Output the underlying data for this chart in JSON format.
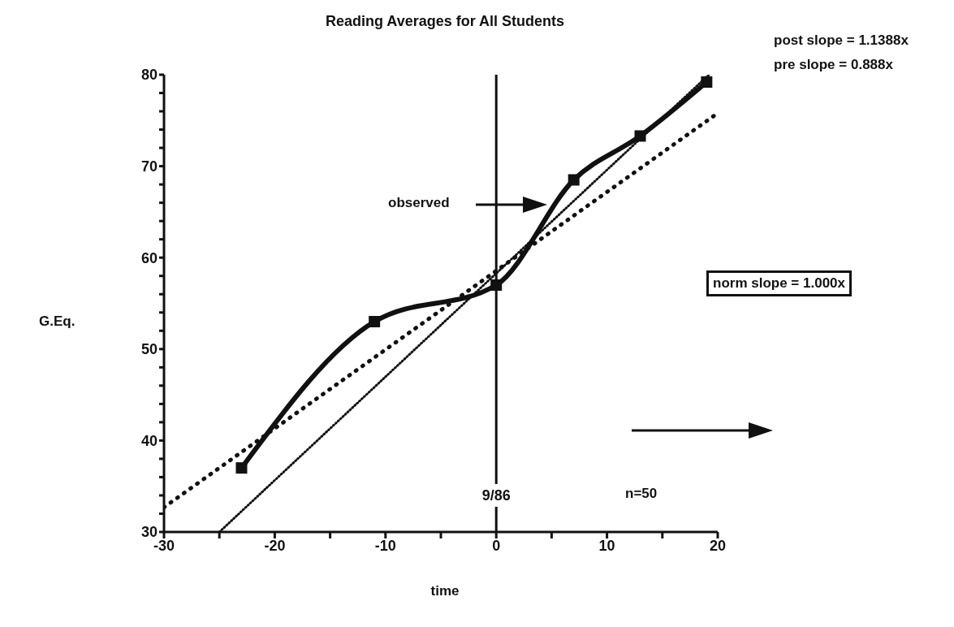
{
  "chart_data": {
    "type": "line",
    "title": "Reading Averages for All Students",
    "xlabel": "time",
    "ylabel": "G.Eq.",
    "xlim": [
      -30,
      20
    ],
    "xticks": [
      -30,
      {
        "value": -25,
        "label": null
      },
      -20,
      {
        "value": -15,
        "label": null
      },
      -10,
      {
        "value": -5,
        "label": null
      },
      0,
      {
        "value": 5,
        "label": null
      },
      10,
      {
        "value": 15,
        "label": null
      },
      20
    ],
    "ylim": [
      30,
      80
    ],
    "yticks": [
      30,
      {
        "value": 32,
        "label": null
      },
      {
        "value": 34,
        "label": null
      },
      {
        "value": 36,
        "label": null
      },
      {
        "value": 38,
        "label": null
      },
      40,
      {
        "value": 42,
        "label": null
      },
      {
        "value": 44,
        "label": null
      },
      {
        "value": 46,
        "label": null
      },
      {
        "value": 48,
        "label": null
      },
      50,
      {
        "value": 52,
        "label": null
      },
      {
        "value": 54,
        "label": null
      },
      {
        "value": 56,
        "label": null
      },
      {
        "value": 58,
        "label": null
      },
      60,
      {
        "value": 62,
        "label": null
      },
      {
        "value": 64,
        "label": null
      },
      {
        "value": 66,
        "label": null
      },
      {
        "value": 68,
        "label": null
      },
      70,
      {
        "value": 72,
        "label": null
      },
      {
        "value": 74,
        "label": null
      },
      {
        "value": 76,
        "label": null
      },
      {
        "value": 78,
        "label": null
      },
      80
    ],
    "series": [
      {
        "color": "#111111",
        "x": [
          -23,
          -11,
          0,
          7,
          13,
          19
        ],
        "values": [
          37,
          53,
          57,
          68.5,
          73.3,
          79.2
        ],
        "marker": "square",
        "line_style": "solid"
      },
      {
        "color": "#111111",
        "x": [
          -30,
          20
        ],
        "values": [
          32.7,
          75.8
        ],
        "marker": "none",
        "line_style": "dotted"
      },
      {
        "color": "#111111",
        "x": [
          -25,
          19.2
        ],
        "values": [
          30,
          80
        ],
        "marker": "none",
        "line_style": "dotted"
      }
    ],
    "ref_lines": [
      {
        "axis": "x",
        "value": 0
      }
    ],
    "annotations": [
      "post slope = 1.1388x",
      "pre slope = 0.888x",
      "observed",
      "norm slope = 1.000x",
      "n=50",
      {
        "text": "9/86",
        "x": 0,
        "y": 34
      }
    ]
  }
}
